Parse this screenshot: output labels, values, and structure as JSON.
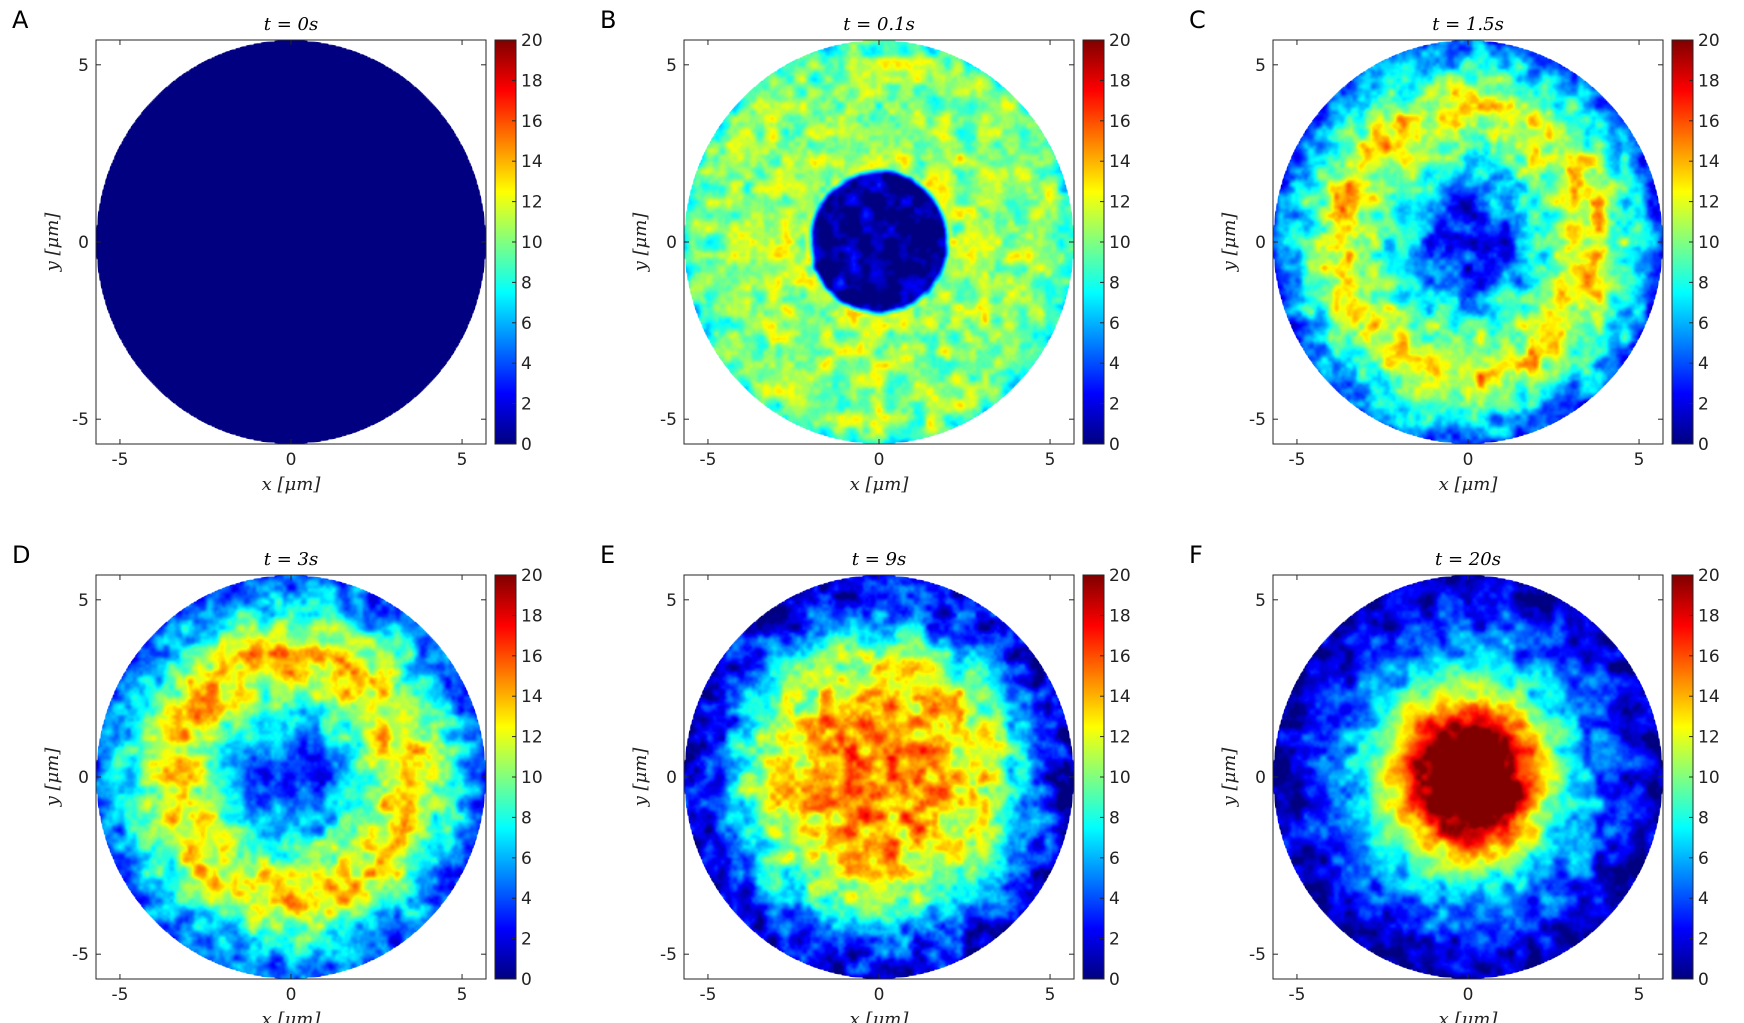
{
  "figure": {
    "colormap": "jet",
    "color_range": [
      0,
      20
    ]
  },
  "chart_data": [
    {
      "type": "heatmap",
      "panel_label": "A",
      "title": "t = 0s",
      "xlabel": "x [μm]",
      "ylabel": "y [μm]",
      "xlim": [
        -5.7,
        5.7
      ],
      "ylim": [
        -5.7,
        5.7
      ],
      "xticks": [
        -5,
        0,
        5
      ],
      "yticks": [
        -5,
        0,
        5
      ],
      "domain_radius": 5.7,
      "colorbar": {
        "min": 0,
        "max": 20,
        "ticks": [
          0,
          2,
          4,
          6,
          8,
          10,
          12,
          14,
          16,
          18,
          20
        ]
      },
      "radial_profile": {
        "r": [
          0,
          5.7
        ],
        "value": [
          0,
          0
        ]
      },
      "noise": 0
    },
    {
      "type": "heatmap",
      "panel_label": "B",
      "title": "t = 0.1s",
      "xlabel": "x [μm]",
      "ylabel": "y [μm]",
      "xlim": [
        -5.7,
        5.7
      ],
      "ylim": [
        -5.7,
        5.7
      ],
      "xticks": [
        -5,
        0,
        5
      ],
      "yticks": [
        -5,
        0,
        5
      ],
      "domain_radius": 5.7,
      "colorbar": {
        "min": 0,
        "max": 20,
        "ticks": [
          0,
          2,
          4,
          6,
          8,
          10,
          12,
          14,
          16,
          18,
          20
        ]
      },
      "radial_profile": {
        "r": [
          0,
          1.9,
          2.1,
          5.4,
          5.7
        ],
        "value": [
          0.5,
          0.5,
          11,
          10,
          8
        ]
      },
      "noise": 3.2
    },
    {
      "type": "heatmap",
      "panel_label": "C",
      "title": "t = 1.5s",
      "xlabel": "x [μm]",
      "ylabel": "y [μm]",
      "xlim": [
        -5.7,
        5.7
      ],
      "ylim": [
        -5.7,
        5.7
      ],
      "xticks": [
        -5,
        0,
        5
      ],
      "yticks": [
        -5,
        0,
        5
      ],
      "domain_radius": 5.7,
      "colorbar": {
        "min": 0,
        "max": 20,
        "ticks": [
          0,
          2,
          4,
          6,
          8,
          10,
          12,
          14,
          16,
          18,
          20
        ]
      },
      "radial_profile": {
        "r": [
          0,
          1.0,
          2.0,
          3.0,
          3.8,
          4.6,
          5.7
        ],
        "value": [
          2.5,
          3.5,
          7,
          11,
          13,
          9,
          4
        ]
      },
      "noise": 3.5
    },
    {
      "type": "heatmap",
      "panel_label": "D",
      "title": "t = 3s",
      "xlabel": "x [μm]",
      "ylabel": "y [μm]",
      "xlim": [
        -5.7,
        5.7
      ],
      "ylim": [
        -5.7,
        5.7
      ],
      "xticks": [
        -5,
        0,
        5
      ],
      "yticks": [
        -5,
        0,
        5
      ],
      "domain_radius": 5.7,
      "colorbar": {
        "min": 0,
        "max": 20,
        "ticks": [
          0,
          2,
          4,
          6,
          8,
          10,
          12,
          14,
          16,
          18,
          20
        ]
      },
      "radial_profile": {
        "r": [
          0,
          0.8,
          1.8,
          2.8,
          3.6,
          4.6,
          5.7
        ],
        "value": [
          3,
          4,
          7,
          12,
          13.5,
          8,
          4
        ]
      },
      "noise": 3.5
    },
    {
      "type": "heatmap",
      "panel_label": "E",
      "title": "t = 9s",
      "xlabel": "x [μm]",
      "ylabel": "y [μm]",
      "xlim": [
        -5.7,
        5.7
      ],
      "ylim": [
        -5.7,
        5.7
      ],
      "xticks": [
        -5,
        0,
        5
      ],
      "yticks": [
        -5,
        0,
        5
      ],
      "domain_radius": 5.7,
      "colorbar": {
        "min": 0,
        "max": 20,
        "ticks": [
          0,
          2,
          4,
          6,
          8,
          10,
          12,
          14,
          16,
          18,
          20
        ]
      },
      "radial_profile": {
        "r": [
          0,
          2.0,
          3.4,
          4.3,
          5.0,
          5.7
        ],
        "value": [
          15,
          14,
          11,
          6,
          3,
          1.5
        ]
      },
      "noise": 3.8
    },
    {
      "type": "heatmap",
      "panel_label": "F",
      "title": "t = 20s",
      "xlabel": "x [μm]",
      "ylabel": "y [μm]",
      "xlim": [
        -5.7,
        5.7
      ],
      "ylim": [
        -5.7,
        5.7
      ],
      "xticks": [
        -5,
        0,
        5
      ],
      "yticks": [
        -5,
        0,
        5
      ],
      "domain_radius": 5.7,
      "colorbar": {
        "min": 0,
        "max": 20,
        "ticks": [
          0,
          2,
          4,
          6,
          8,
          10,
          12,
          14,
          16,
          18,
          20
        ]
      },
      "radial_profile": {
        "r": [
          0,
          1.4,
          2.2,
          3.0,
          3.8,
          4.8,
          5.7
        ],
        "value": [
          24,
          20,
          13,
          8,
          5,
          2.5,
          1
        ]
      },
      "noise": 3.0
    }
  ]
}
